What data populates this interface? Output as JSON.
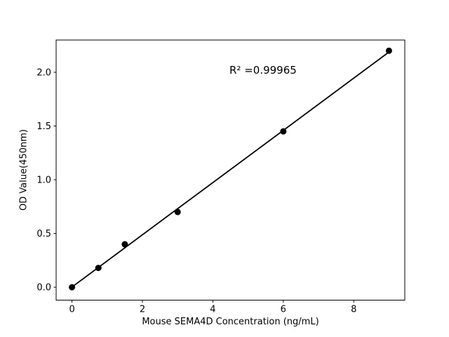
{
  "chart_data": {
    "type": "scatter",
    "title": "",
    "xlabel": "Mouse SEMA4D Concentration (ng/mL)",
    "ylabel": "OD Value(450nm)",
    "annotation": "R² =0.99965",
    "r_squared": 0.99965,
    "x": [
      0,
      0.75,
      1.5,
      3,
      6,
      9
    ],
    "y": [
      0,
      0.18,
      0.4,
      0.7,
      1.45,
      2.2
    ],
    "fit_line": {
      "x1": 0,
      "y1": 0.002,
      "x2": 9,
      "y2": 2.188
    },
    "xticks": {
      "values": [
        0,
        2,
        4,
        6,
        8
      ],
      "labels": [
        "0",
        "2",
        "4",
        "6",
        "8"
      ]
    },
    "yticks": {
      "values": [
        0,
        0.5,
        1.0,
        1.5,
        2.0
      ],
      "labels": [
        "0.0",
        "0.5",
        "1.0",
        "1.5",
        "2.0"
      ]
    },
    "xlim": [
      -0.45,
      9.45
    ],
    "ylim": [
      -0.12,
      2.3
    ],
    "grid": false,
    "legend": null,
    "colors": {
      "marker": "#000000",
      "line": "#000000",
      "frame": "#000000",
      "text": "#000000",
      "background": "#ffffff"
    }
  }
}
